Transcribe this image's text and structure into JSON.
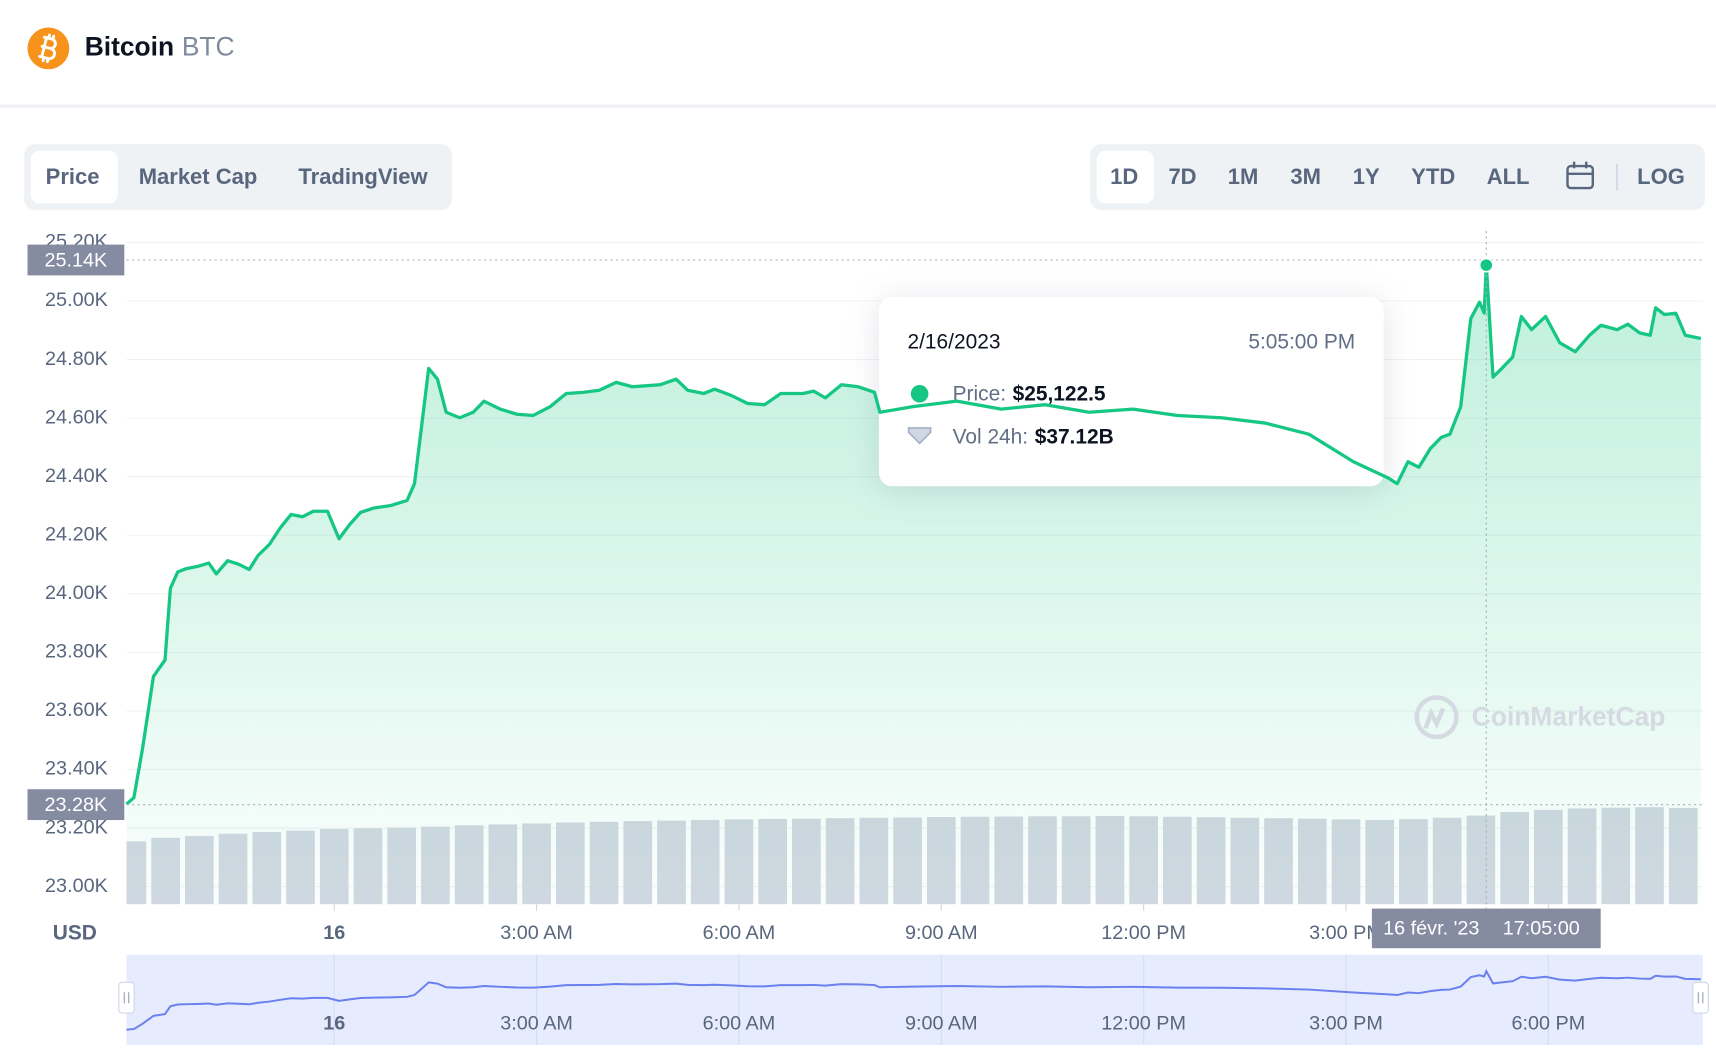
{
  "header": {
    "name": "Bitcoin",
    "symbol": "BTC"
  },
  "tabs": [
    "Price",
    "Market Cap",
    "TradingView"
  ],
  "ranges": [
    "1D",
    "7D",
    "1M",
    "3M",
    "1Y",
    "YTD",
    "ALL"
  ],
  "log_button": "LOG",
  "watermark": "CoinMarketCap",
  "tooltip": {
    "date": "2/16/2023",
    "time": "5:05:00 PM",
    "price_label": "Price:",
    "price_value": "$25,122.5",
    "volume_label": "Vol 24h:",
    "volume_value": "$37.12B"
  },
  "chart_data": {
    "type": "area",
    "x_label": "USD",
    "xlim": [
      -3.08,
      20.29
    ],
    "xticks": [
      {
        "value": 0,
        "label": "16"
      },
      {
        "value": 3,
        "label": "3:00 AM"
      },
      {
        "value": 6,
        "label": "6:00 AM"
      },
      {
        "value": 9,
        "label": "9:00 AM"
      },
      {
        "value": 12,
        "label": "12:00 PM"
      },
      {
        "value": 15,
        "label": "3:00 PM"
      },
      {
        "value": 18,
        "label": "6:00 PM"
      }
    ],
    "ylim": [
      22940,
      25224
    ],
    "yticks": [
      {
        "value": 23000,
        "label": "23.00K"
      },
      {
        "value": 23200,
        "label": "23.20K"
      },
      {
        "value": 23400,
        "label": "23.40K"
      },
      {
        "value": 23600,
        "label": "23.60K"
      },
      {
        "value": 23800,
        "label": "23.80K"
      },
      {
        "value": 24000,
        "label": "24.00K"
      },
      {
        "value": 24200,
        "label": "24.20K"
      },
      {
        "value": 24400,
        "label": "24.40K"
      },
      {
        "value": 24600,
        "label": "24.60K"
      },
      {
        "value": 24800,
        "label": "24.80K"
      },
      {
        "value": 25000,
        "label": "25.00K"
      },
      {
        "value": 25200,
        "label": "25.20K"
      }
    ],
    "y2lim": [
      0,
      280
    ],
    "grid": true,
    "high": {
      "value": 25140,
      "label": "25.14K"
    },
    "low": {
      "value": 23280,
      "label": "23.28K"
    },
    "crosshair": {
      "x": 17.08,
      "date_label": "16 févr. '23",
      "time_label": "17:05:00"
    },
    "series": [
      {
        "color": "#16c784",
        "x": [
          -3.08,
          -2.97,
          -2.84,
          -2.68,
          -2.51,
          -2.43,
          -2.32,
          -2.19,
          -2.02,
          -1.86,
          -1.75,
          -1.58,
          -1.42,
          -1.26,
          -1.13,
          -0.96,
          -0.8,
          -0.64,
          -0.47,
          -0.31,
          -0.1,
          0.07,
          0.23,
          0.39,
          0.59,
          0.83,
          1.08,
          1.19,
          1.29,
          1.4,
          1.53,
          1.66,
          1.86,
          2.06,
          2.22,
          2.46,
          2.71,
          2.95,
          3.2,
          3.44,
          3.69,
          3.93,
          4.18,
          4.42,
          4.83,
          5.07,
          5.24,
          5.48,
          5.64,
          5.89,
          6.13,
          6.38,
          6.62,
          6.95,
          7.11,
          7.28,
          7.52,
          7.77,
          8.01,
          8.09,
          8.58,
          9.23,
          9.89,
          10.54,
          11.19,
          11.84,
          12.5,
          13.15,
          13.8,
          14.45,
          15.11,
          15.63,
          15.76,
          15.92,
          16.08,
          16.25,
          16.41,
          16.54,
          16.7,
          16.85,
          16.98,
          17.05,
          17.08,
          17.18,
          17.31,
          17.47,
          17.6,
          17.75,
          17.96,
          18.17,
          18.4,
          18.61,
          18.78,
          19.02,
          19.18,
          19.35,
          19.51,
          19.59,
          19.72,
          19.89,
          20.03,
          20.26
        ],
        "values": [
          23282,
          23304,
          23474,
          23718,
          23774,
          24019,
          24075,
          24086,
          24094,
          24105,
          24068,
          24113,
          24101,
          24083,
          24131,
          24169,
          24225,
          24271,
          24263,
          24282,
          24282,
          24188,
          24237,
          24278,
          24293,
          24301,
          24319,
          24376,
          24564,
          24770,
          24733,
          24620,
          24601,
          24620,
          24658,
          24631,
          24613,
          24609,
          24639,
          24684,
          24688,
          24695,
          24722,
          24707,
          24714,
          24733,
          24695,
          24684,
          24699,
          24677,
          24650,
          24646,
          24684,
          24684,
          24692,
          24669,
          24714,
          24707,
          24688,
          24620,
          24639,
          24658,
          24631,
          24646,
          24620,
          24631,
          24609,
          24601,
          24583,
          24545,
          24451,
          24395,
          24376,
          24451,
          24432,
          24496,
          24534,
          24545,
          24639,
          24940,
          24996,
          24959,
          25122.5,
          24740,
          24770,
          24808,
          24947,
          24902,
          24947,
          24857,
          24827,
          24883,
          24917,
          24902,
          24921,
          24891,
          24883,
          24977,
          24954,
          24958,
          24883,
          24872
        ]
      },
      {
        "type": "bar",
        "axis": "y2",
        "color": "#d3d8e2",
        "x": [
          -3,
          -2.5,
          -2,
          -1.5,
          -1,
          -0.5,
          0,
          0.5,
          1,
          1.5,
          2,
          2.5,
          3,
          3.5,
          4,
          4.5,
          5,
          5.5,
          6,
          6.5,
          7,
          7.5,
          8,
          8.5,
          9,
          9.5,
          10,
          10.5,
          11,
          11.5,
          12,
          12.5,
          13,
          13.5,
          14,
          14.5,
          15,
          15.5,
          16,
          16.5,
          17,
          17.5,
          18,
          18.5,
          19,
          19.5,
          20
        ],
        "values": [
          26.3,
          27.8,
          28.6,
          29.5,
          30.2,
          30.8,
          31.5,
          31.8,
          32.1,
          32.5,
          33.0,
          33.4,
          33.8,
          34.2,
          34.5,
          34.8,
          35.0,
          35.3,
          35.5,
          35.7,
          35.8,
          36.0,
          36.2,
          36.3,
          36.5,
          36.6,
          36.7,
          36.8,
          36.8,
          36.9,
          36.8,
          36.6,
          36.4,
          36.2,
          36.0,
          35.8,
          35.5,
          35.3,
          35.6,
          36.2,
          37.1,
          38.6,
          39.5,
          40.1,
          40.4,
          40.6,
          40.3
        ]
      }
    ]
  }
}
